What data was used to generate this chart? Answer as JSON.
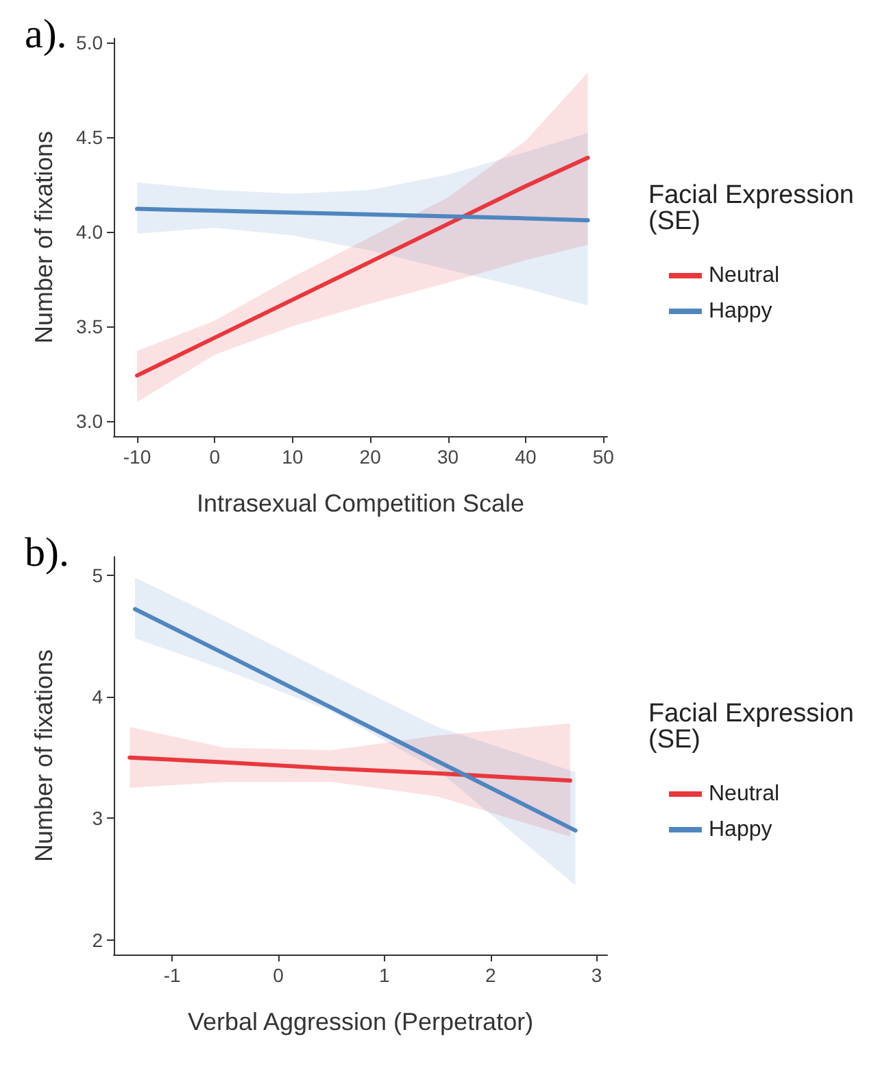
{
  "chart_data": [
    {
      "type": "line",
      "title": "a).",
      "xlabel": "Intrasexual Competition Scale",
      "ylabel": "Number of fixations",
      "legend_title": "Facial Expression\n(SE)",
      "legend": "right",
      "grid": false,
      "marker": "none",
      "line_style": "solid",
      "xlim": [
        -13,
        50.5
      ],
      "xticks": [
        -10,
        0,
        10,
        20,
        30,
        40,
        50
      ],
      "ylim": [
        2.92,
        5.02
      ],
      "yticks": [
        {
          "value": 3,
          "label": "3.0"
        },
        {
          "value": 3.5,
          "label": "3.5"
        },
        {
          "value": 4,
          "label": "4.0"
        },
        {
          "value": 4.5,
          "label": "4.5"
        },
        {
          "value": 5,
          "label": "5.0"
        }
      ],
      "series": [
        {
          "name": "Neutral",
          "color": "#e8383d",
          "x": [
            -10,
            0,
            10,
            20,
            30,
            40,
            48
          ],
          "values": [
            3.24,
            3.44,
            3.64,
            3.84,
            4.04,
            4.24,
            4.39
          ],
          "lower": [
            3.1,
            3.35,
            3.5,
            3.62,
            3.73,
            3.85,
            3.93
          ],
          "upper": [
            3.37,
            3.53,
            3.76,
            3.97,
            4.18,
            4.48,
            4.84
          ]
        },
        {
          "name": "Happy",
          "color": "#4f86c0",
          "x": [
            -10,
            0,
            10,
            20,
            30,
            40,
            48
          ],
          "values": [
            4.12,
            4.11,
            4.1,
            4.09,
            4.08,
            4.07,
            4.06
          ],
          "lower": [
            3.99,
            4.02,
            3.98,
            3.9,
            3.8,
            3.7,
            3.61
          ],
          "upper": [
            4.26,
            4.22,
            4.2,
            4.22,
            4.3,
            4.42,
            4.52
          ]
        }
      ]
    },
    {
      "type": "line",
      "title": "b).",
      "xlabel": "Verbal Aggression (Perpetrator)",
      "ylabel": "Number of fixations",
      "legend_title": "Facial Expression\n(SE)",
      "legend": "right",
      "grid": false,
      "marker": "none",
      "line_style": "solid",
      "xlim": [
        -1.55,
        3.1
      ],
      "xticks": [
        -1,
        0,
        1,
        2,
        3
      ],
      "ylim": [
        1.88,
        5.15
      ],
      "yticks": [
        2,
        3,
        4,
        5
      ],
      "series": [
        {
          "name": "Neutral",
          "color": "#e8383d",
          "x": [
            -1.4,
            -0.5,
            0.5,
            1.5,
            2.75
          ],
          "values": [
            3.5,
            3.46,
            3.41,
            3.37,
            3.31
          ],
          "lower": [
            3.25,
            3.3,
            3.3,
            3.18,
            2.85
          ],
          "upper": [
            3.75,
            3.58,
            3.56,
            3.68,
            3.78
          ]
        },
        {
          "name": "Happy",
          "color": "#4f86c0",
          "x": [
            -1.35,
            -0.5,
            0.5,
            1.5,
            2.8
          ],
          "values": [
            4.72,
            4.35,
            3.91,
            3.47,
            2.9
          ],
          "lower": [
            4.48,
            4.22,
            3.88,
            3.4,
            2.45
          ],
          "upper": [
            4.98,
            4.62,
            4.18,
            3.75,
            3.38
          ]
        }
      ]
    }
  ]
}
